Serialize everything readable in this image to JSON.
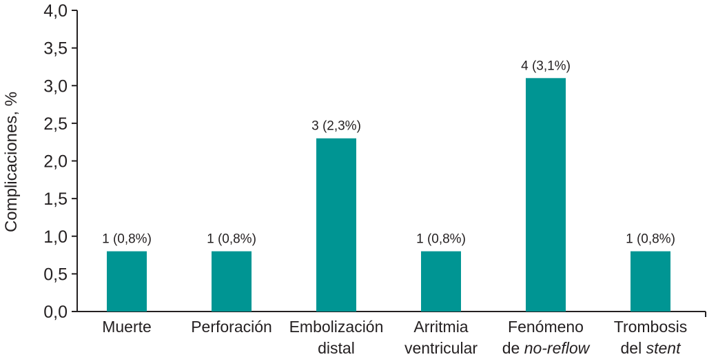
{
  "chart_data": {
    "type": "bar",
    "title": "",
    "xlabel": "",
    "ylabel": "Complicaciones, %",
    "ylim": [
      0,
      4.0
    ],
    "yticks": [
      "0,0",
      "0,5",
      "1,0",
      "1,5",
      "2,0",
      "2,5",
      "3,0",
      "3,5",
      "4,0"
    ],
    "ytick_values": [
      0,
      0.5,
      1.0,
      1.5,
      2.0,
      2.5,
      3.0,
      3.5,
      4.0
    ],
    "grid": false,
    "bar_color": "#009593",
    "categories": [
      {
        "line1": "Muerte",
        "line2": "",
        "line2_italic": ""
      },
      {
        "line1": "Perforación",
        "line2": "",
        "line2_italic": ""
      },
      {
        "line1": "Embolización",
        "line2": "distal",
        "line2_italic": ""
      },
      {
        "line1": "Arritmia",
        "line2": "ventricular",
        "line2_italic": ""
      },
      {
        "line1": "Fenómeno",
        "line2": "de ",
        "line2_italic": "no-reflow"
      },
      {
        "line1": "Trombosis",
        "line2": "del ",
        "line2_italic": "stent"
      }
    ],
    "values": [
      0.8,
      0.8,
      2.3,
      0.8,
      3.1,
      0.8
    ],
    "data_labels": [
      "1 (0,8%)",
      "1 (0,8%)",
      "3 (2,3%)",
      "1 (0,8%)",
      "4 (3,1%)",
      "1 (0,8%)"
    ]
  }
}
